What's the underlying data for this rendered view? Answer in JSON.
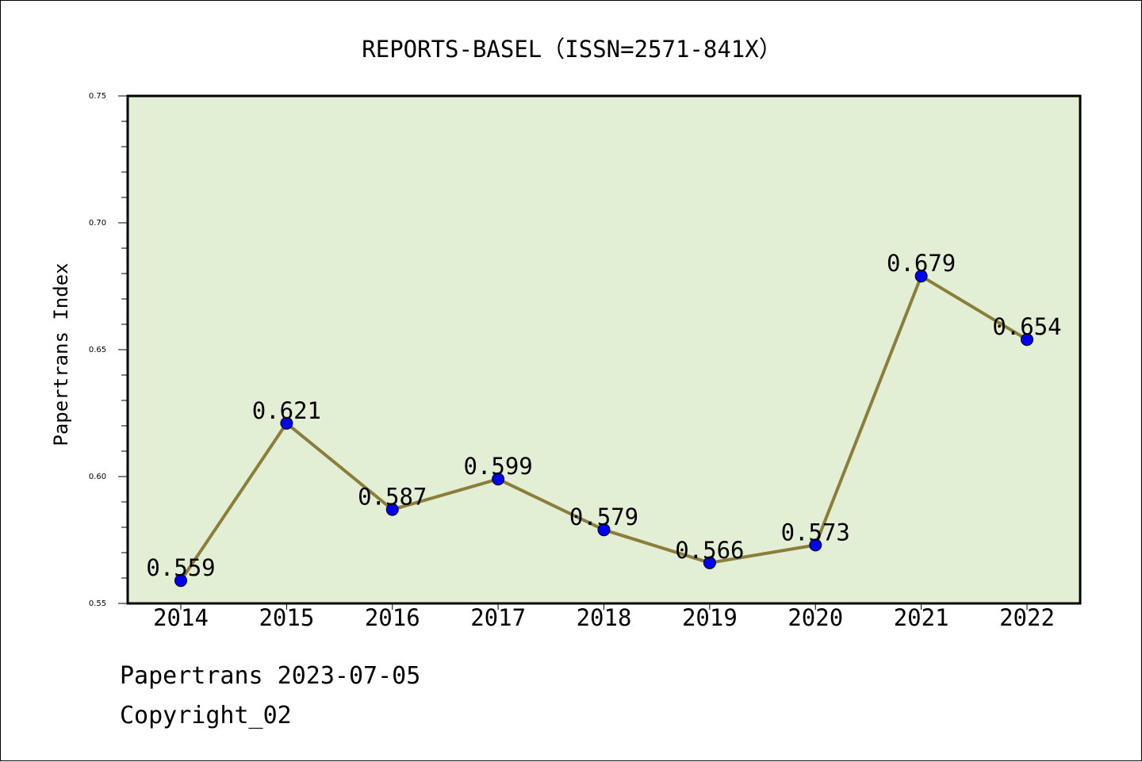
{
  "chart_data": {
    "type": "line",
    "title": "REPORTS-BASEL（ISSN=2571-841X）",
    "xlabel": "",
    "ylabel": "Papertrans Index",
    "categories": [
      "2014",
      "2015",
      "2016",
      "2017",
      "2018",
      "2019",
      "2020",
      "2021",
      "2022"
    ],
    "values": [
      0.559,
      0.621,
      0.587,
      0.599,
      0.579,
      0.566,
      0.573,
      0.679,
      0.654
    ],
    "data_labels": [
      "0.559",
      "0.621",
      "0.587",
      "0.599",
      "0.579",
      "0.566",
      "0.573",
      "0.679",
      "0.654"
    ],
    "ylim": [
      0.55,
      0.75
    ],
    "yticks": [
      0.55,
      0.6,
      0.65,
      0.7,
      0.75
    ],
    "ytick_labels": [
      "0.55",
      "0.60",
      "0.65",
      "0.70",
      "0.75"
    ],
    "grid": false,
    "legend": "none",
    "colors": {
      "plot_background": "#e2efd5",
      "line": "#8b7d3a",
      "marker": "#0000ee"
    }
  },
  "footer": {
    "date_line": "Papertrans 2023-07-05",
    "copyright": "Copyright_02"
  }
}
